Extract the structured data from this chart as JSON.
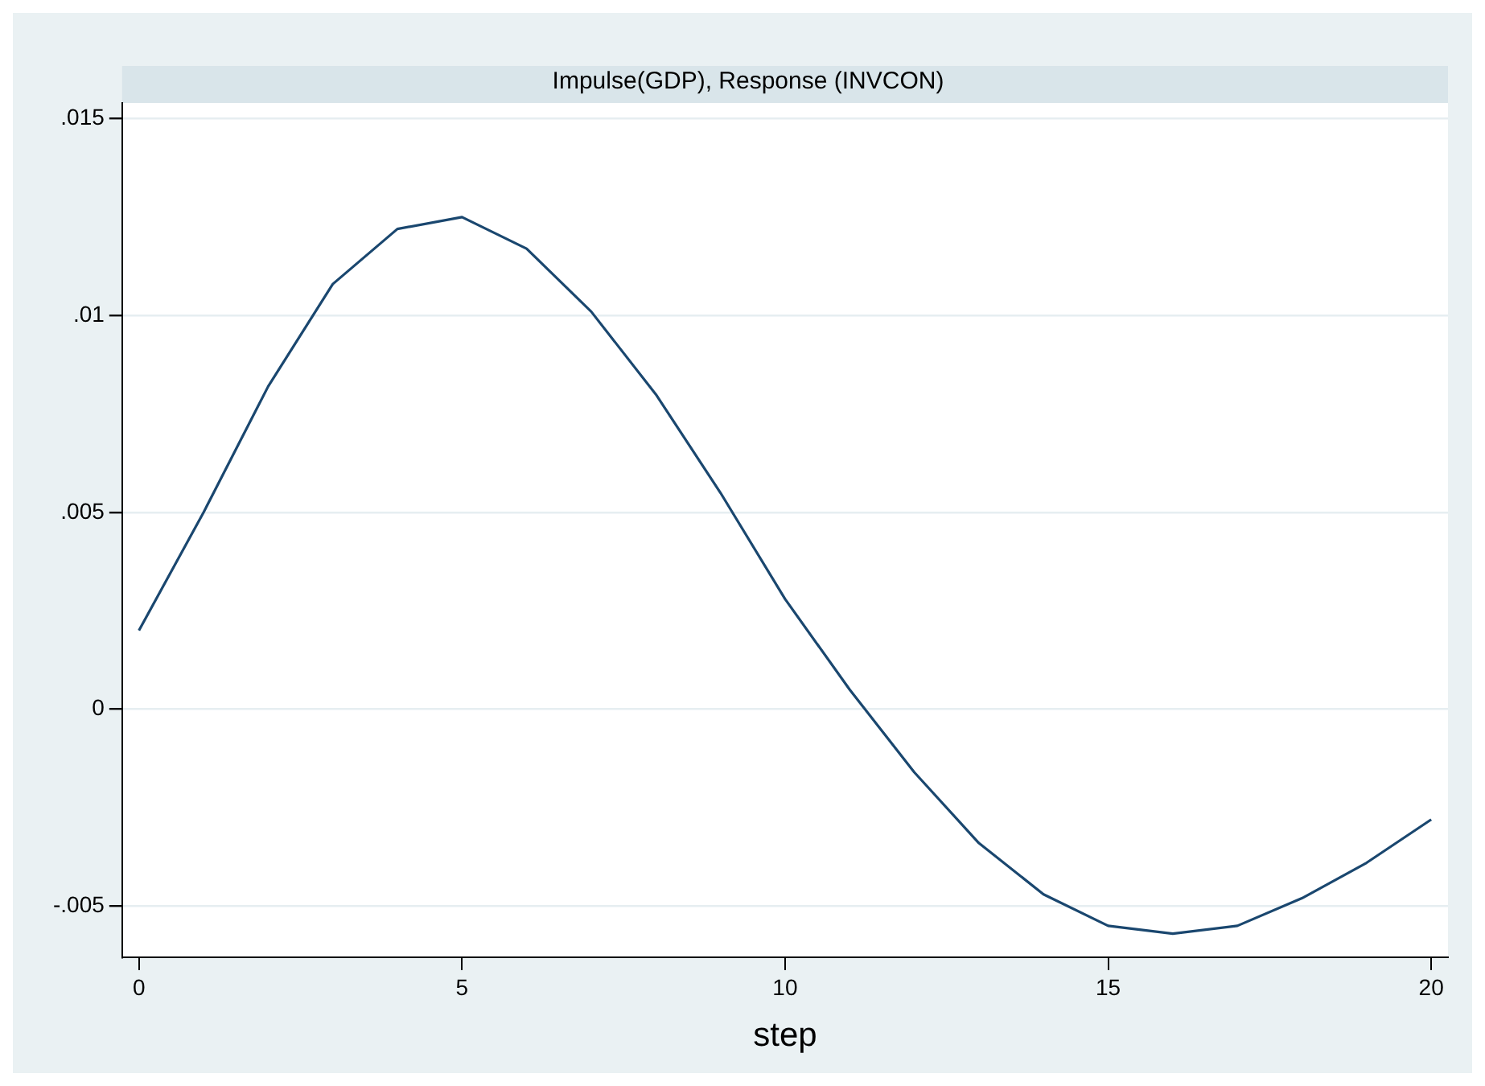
{
  "chart_data": {
    "type": "line",
    "title": "Impulse(GDP), Response (INVCON)",
    "xlabel": "step",
    "x": [
      0,
      1,
      2,
      3,
      4,
      5,
      6,
      7,
      8,
      9,
      10,
      11,
      12,
      13,
      14,
      15,
      16,
      17,
      18,
      19,
      20
    ],
    "series": [
      {
        "color": "#1a476f",
        "values": [
          0.002,
          0.005,
          0.0082,
          0.0108,
          0.0122,
          0.0125,
          0.0117,
          0.0101,
          0.008,
          0.0055,
          0.0028,
          0.0005,
          -0.0016,
          -0.0034,
          -0.0047,
          -0.0055,
          -0.0057,
          -0.0055,
          -0.0048,
          -0.0039,
          -0.0028
        ]
      }
    ],
    "xlim": [
      -0.26,
      20.26
    ],
    "xticks": [
      0,
      5,
      10,
      15,
      20
    ],
    "ylim": [
      -0.0063,
      0.0154
    ],
    "yticks": [
      {
        "value": -0.005,
        "label": "-.005"
      },
      0,
      {
        "value": 0.005,
        "label": ".005"
      },
      {
        "value": 0.01,
        "label": ".01"
      },
      {
        "value": 0.015,
        "label": ".015"
      }
    ],
    "grid": "y",
    "legend": false,
    "marker": "none",
    "line_style": "solid"
  }
}
